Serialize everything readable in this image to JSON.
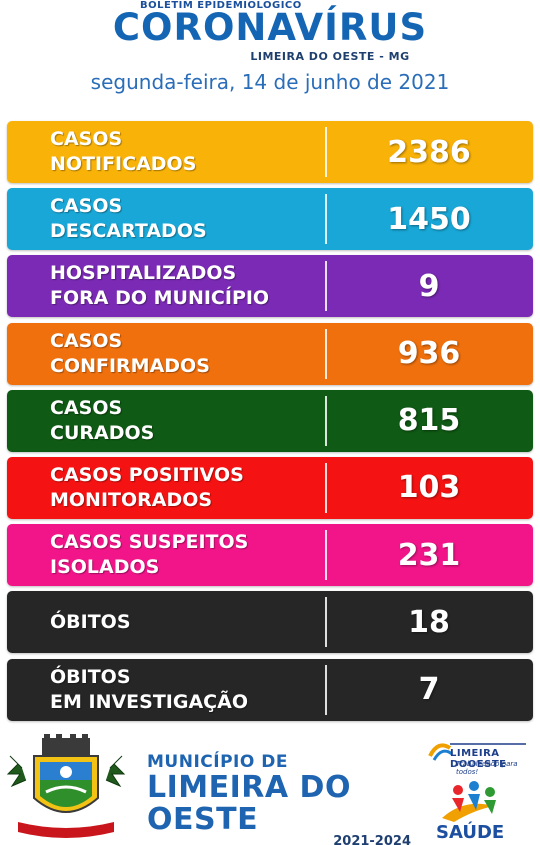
{
  "header": {
    "kicker": "BOLETIM EPIDEMIOLÓGICO",
    "title": "CORONAVÍRUS",
    "place": "LIMEIRA DO OESTE - MG",
    "date": "segunda-feira, 14 de junho de 2021"
  },
  "rows": [
    {
      "line1": "CASOS",
      "line2": "NOTIFICADOS",
      "value": "2386",
      "color": "#f9b208"
    },
    {
      "line1": "CASOS",
      "line2": "DESCARTADOS",
      "value": "1450",
      "color": "#19a7d7"
    },
    {
      "line1": "HOSPITALIZADOS",
      "line2": "FORA DO MUNICÍPIO",
      "value": "9",
      "color": "#7a2ab4"
    },
    {
      "line1": "CASOS",
      "line2": "CONFIRMADOS",
      "value": "936",
      "color": "#f0700d"
    },
    {
      "line1": "CASOS",
      "line2": "CURADOS",
      "value": "815",
      "color": "#0f5a14"
    },
    {
      "line1": "CASOS POSITIVOS",
      "line2": "MONITORADOS",
      "value": "103",
      "color": "#f51212"
    },
    {
      "line1": "CASOS SUSPEITOS",
      "line2": "ISOLADOS",
      "value": "231",
      "color": "#f2158a"
    },
    {
      "line1": "ÓBITOS",
      "line2": "",
      "value": "18",
      "color": "#262626"
    },
    {
      "line1": "ÓBITOS",
      "line2": "EM INVESTIGAÇÃO",
      "value": "7",
      "color": "#262626"
    }
  ],
  "footer": {
    "municipio_prefix": "MUNICÍPIO DE",
    "municipio_name": "LIMEIRA DO OESTE",
    "term": "2021-2024",
    "crest_caption": "LIMEIRA DO OESTE",
    "logo_top_name": "LIMEIRA DOOESTE",
    "logo_top_slogan": "Trabalhando para todos!",
    "logo_bottom_name": "SAÚDE",
    "crest_icon": "municipal-crest-icon",
    "logo_icon": "city-logo-icon"
  }
}
